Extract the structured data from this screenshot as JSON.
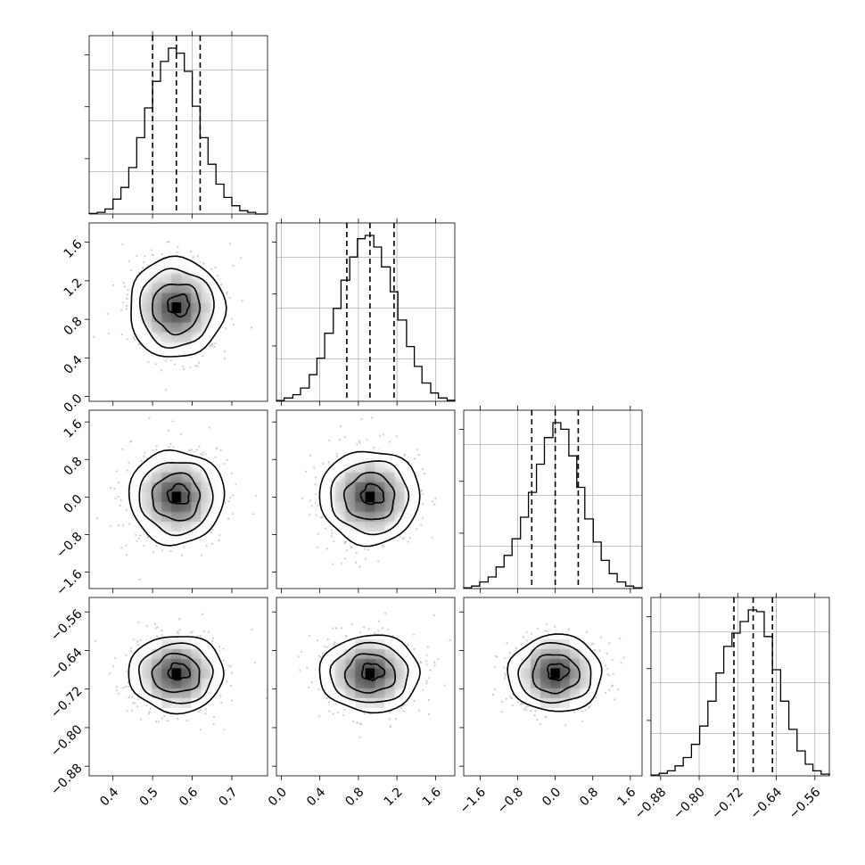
{
  "colors": {
    "background": "#ffffff",
    "line": "#000000",
    "grid": "#b0b0b0",
    "scatter": "#a0a0a0"
  },
  "chart_data": {
    "type": "corner",
    "n_params": 4,
    "params": [
      {
        "range": [
          0.34,
          0.79
        ],
        "ticks": [
          0.4,
          0.5,
          0.6,
          0.7
        ],
        "tick_labels": [
          "0.4",
          "0.5",
          "0.6",
          "0.7"
        ],
        "mean": 0.56,
        "std": 0.06,
        "quantiles": [
          0.5,
          0.56,
          0.62
        ],
        "hist_edges": [
          0.34,
          0.36,
          0.38,
          0.4,
          0.42,
          0.44,
          0.46,
          0.48,
          0.5,
          0.52,
          0.54,
          0.56,
          0.58,
          0.6,
          0.62,
          0.64,
          0.66,
          0.68,
          0.7,
          0.72,
          0.74,
          0.76,
          0.79
        ],
        "hist_counts": [
          0.003,
          0.01,
          0.03,
          0.09,
          0.16,
          0.28,
          0.46,
          0.64,
          0.8,
          0.92,
          1.0,
          0.97,
          0.86,
          0.65,
          0.46,
          0.3,
          0.18,
          0.1,
          0.05,
          0.02,
          0.01,
          0.0
        ]
      },
      {
        "range": [
          -0.05,
          1.8
        ],
        "ticks": [
          0.0,
          0.4,
          0.8,
          1.2,
          1.6
        ],
        "tick_labels": [
          "0.0",
          "0.4",
          "0.8",
          "1.2",
          "1.6"
        ],
        "mean": 0.92,
        "std": 0.26,
        "quantiles": [
          0.68,
          0.92,
          1.17
        ],
        "hist_edges": [
          -0.05,
          0.03,
          0.12,
          0.2,
          0.29,
          0.37,
          0.45,
          0.54,
          0.62,
          0.71,
          0.79,
          0.87,
          0.96,
          1.04,
          1.13,
          1.21,
          1.3,
          1.38,
          1.46,
          1.55,
          1.63,
          1.72,
          1.8
        ],
        "hist_counts": [
          0.005,
          0.02,
          0.04,
          0.08,
          0.16,
          0.26,
          0.41,
          0.56,
          0.73,
          0.87,
          0.98,
          1.0,
          0.93,
          0.81,
          0.66,
          0.49,
          0.33,
          0.21,
          0.11,
          0.05,
          0.02,
          0.006
        ]
      },
      {
        "range": [
          -1.95,
          1.85
        ],
        "ticks": [
          -1.6,
          -0.8,
          0.0,
          0.8,
          1.6
        ],
        "tick_labels": [
          "−1.6",
          "−0.8",
          "0.0",
          "0.8",
          "1.6"
        ],
        "mean": 0.0,
        "std": 0.5,
        "quantiles": [
          -0.5,
          0.0,
          0.49
        ],
        "hist_edges": [
          -1.95,
          -1.78,
          -1.61,
          -1.43,
          -1.26,
          -1.09,
          -0.92,
          -0.74,
          -0.57,
          -0.4,
          -0.23,
          -0.05,
          0.12,
          0.29,
          0.46,
          0.63,
          0.81,
          0.98,
          1.15,
          1.32,
          1.5,
          1.67,
          1.85
        ],
        "hist_counts": [
          0.005,
          0.015,
          0.04,
          0.07,
          0.13,
          0.2,
          0.3,
          0.43,
          0.58,
          0.75,
          0.91,
          1.0,
          0.96,
          0.8,
          0.61,
          0.42,
          0.28,
          0.17,
          0.09,
          0.04,
          0.015,
          0.005
        ]
      },
      {
        "range": [
          -0.9,
          -0.53
        ],
        "ticks": [
          -0.88,
          -0.8,
          -0.72,
          -0.64,
          -0.56
        ],
        "tick_labels": [
          "−0.88",
          "−0.80",
          "−0.72",
          "−0.64",
          "−0.56"
        ],
        "mean": -0.688,
        "std": 0.04,
        "quantiles": [
          -0.728,
          -0.688,
          -0.648
        ],
        "hist_edges": [
          -0.9,
          -0.883,
          -0.866,
          -0.85,
          -0.833,
          -0.816,
          -0.799,
          -0.782,
          -0.765,
          -0.749,
          -0.732,
          -0.715,
          -0.698,
          -0.681,
          -0.665,
          -0.648,
          -0.631,
          -0.614,
          -0.597,
          -0.58,
          -0.564,
          -0.547,
          -0.53
        ],
        "hist_counts": [
          0.005,
          0.015,
          0.03,
          0.06,
          0.11,
          0.19,
          0.3,
          0.45,
          0.62,
          0.78,
          0.86,
          0.93,
          1.0,
          0.99,
          0.84,
          0.64,
          0.45,
          0.28,
          0.15,
          0.07,
          0.03,
          0.01
        ]
      }
    ],
    "xlabel": "",
    "ylabel": "",
    "grid": true
  }
}
